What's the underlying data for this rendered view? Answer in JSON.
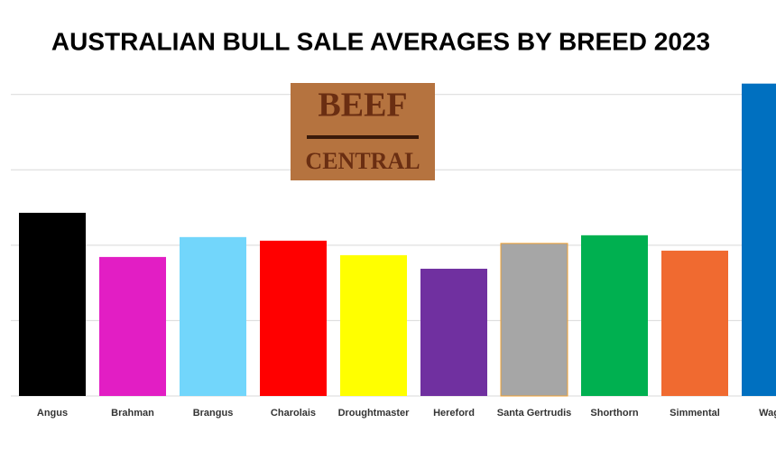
{
  "chart_data": {
    "type": "bar",
    "title": "AUSTRALIAN BULL SALE AVERAGES BY BREED 2023",
    "categories": [
      "Angus",
      "Brahman",
      "Brangus",
      "Charolais",
      "Droughtmaster",
      "Hereford",
      "Santa Gertrudis",
      "Shorthorn",
      "Simmental",
      "Wagyu"
    ],
    "values": [
      12150,
      9220,
      10540,
      10300,
      9340,
      8440,
      10120,
      10660,
      9640,
      20720
    ],
    "colors": [
      "#000000",
      "#e21ec4",
      "#72d6fb",
      "#ff0000",
      "#ffff00",
      "#7030a0",
      "#a6a6a6",
      "#00b050",
      "#f06a30",
      "#0070c0"
    ],
    "ylim": [
      0,
      21000
    ],
    "yticks": [
      0,
      5000,
      10000,
      15000,
      20000
    ],
    "grid": true
  },
  "logo": {
    "top": "BEEF",
    "bottom": "CENTRAL"
  }
}
